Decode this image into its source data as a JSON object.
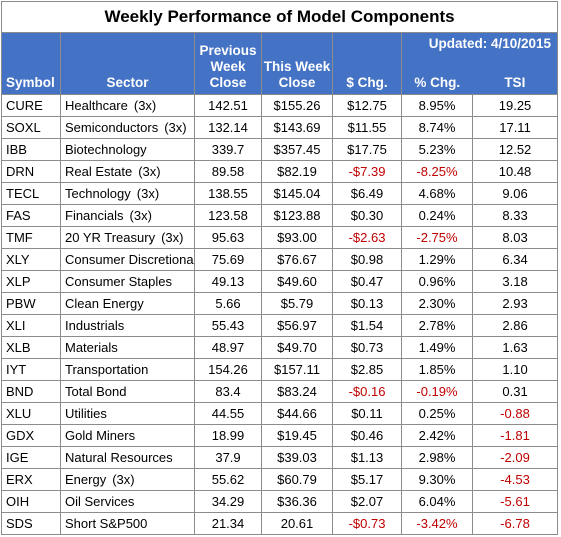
{
  "title": "Weekly Performance of Model Components",
  "updated": "Updated:  4/10/2015",
  "headers": {
    "symbol": "Symbol",
    "sector": "Sector",
    "prev_close": "Previous Week Close",
    "this_close": "This Week Close",
    "dollar_chg": "$ Chg.",
    "pct_chg": "% Chg.",
    "tsi": "TSI"
  },
  "rows": [
    {
      "symbol": "CURE",
      "sector": "Healthcare",
      "tag": "(3x)",
      "prev": "142.51",
      "cur": "$155.26",
      "dchg": "$12.75",
      "pchg": "8.95%",
      "tsi": "19.25"
    },
    {
      "symbol": "SOXL",
      "sector": "Semiconductors",
      "tag": "(3x)",
      "prev": "132.14",
      "cur": "$143.69",
      "dchg": "$11.55",
      "pchg": "8.74%",
      "tsi": "17.11"
    },
    {
      "symbol": "IBB",
      "sector": "Biotechnology",
      "tag": "",
      "prev": "339.7",
      "cur": "$357.45",
      "dchg": "$17.75",
      "pchg": "5.23%",
      "tsi": "12.52"
    },
    {
      "symbol": "DRN",
      "sector": "Real Estate",
      "tag": "(3x)",
      "prev": "89.58",
      "cur": "$82.19",
      "dchg": "-$7.39",
      "pchg": "-8.25%",
      "tsi": "10.48"
    },
    {
      "symbol": "TECL",
      "sector": "Technology",
      "tag": "(3x)",
      "prev": "138.55",
      "cur": "$145.04",
      "dchg": "$6.49",
      "pchg": "4.68%",
      "tsi": "9.06"
    },
    {
      "symbol": "FAS",
      "sector": "Financials",
      "tag": "(3x)",
      "prev": "123.58",
      "cur": "$123.88",
      "dchg": "$0.30",
      "pchg": "0.24%",
      "tsi": "8.33"
    },
    {
      "symbol": "TMF",
      "sector": "20 YR Treasury",
      "tag": "(3x)",
      "prev": "95.63",
      "cur": "$93.00",
      "dchg": "-$2.63",
      "pchg": "-2.75%",
      "tsi": "8.03"
    },
    {
      "symbol": "XLY",
      "sector": "Consumer Discretiona",
      "tag": "",
      "prev": "75.69",
      "cur": "$76.67",
      "dchg": "$0.98",
      "pchg": "1.29%",
      "tsi": "6.34"
    },
    {
      "symbol": "XLP",
      "sector": "Consumer Staples",
      "tag": "",
      "prev": "49.13",
      "cur": "$49.60",
      "dchg": "$0.47",
      "pchg": "0.96%",
      "tsi": "3.18"
    },
    {
      "symbol": "PBW",
      "sector": "Clean Energy",
      "tag": "",
      "prev": "5.66",
      "cur": "$5.79",
      "dchg": "$0.13",
      "pchg": "2.30%",
      "tsi": "2.93"
    },
    {
      "symbol": "XLI",
      "sector": "Industrials",
      "tag": "",
      "prev": "55.43",
      "cur": "$56.97",
      "dchg": "$1.54",
      "pchg": "2.78%",
      "tsi": "2.86"
    },
    {
      "symbol": "XLB",
      "sector": "Materials",
      "tag": "",
      "prev": "48.97",
      "cur": "$49.70",
      "dchg": "$0.73",
      "pchg": "1.49%",
      "tsi": "1.63"
    },
    {
      "symbol": "IYT",
      "sector": "Transportation",
      "tag": "",
      "prev": "154.26",
      "cur": "$157.11",
      "dchg": "$2.85",
      "pchg": "1.85%",
      "tsi": "1.10"
    },
    {
      "symbol": "BND",
      "sector": "Total Bond",
      "tag": "",
      "prev": "83.4",
      "cur": "$83.24",
      "dchg": "-$0.16",
      "pchg": "-0.19%",
      "tsi": "0.31"
    },
    {
      "symbol": "XLU",
      "sector": "Utilities",
      "tag": "",
      "prev": "44.55",
      "cur": "$44.66",
      "dchg": "$0.11",
      "pchg": "0.25%",
      "tsi": "-0.88"
    },
    {
      "symbol": "GDX",
      "sector": "Gold Miners",
      "tag": "",
      "prev": "18.99",
      "cur": "$19.45",
      "dchg": "$0.46",
      "pchg": "2.42%",
      "tsi": "-1.81"
    },
    {
      "symbol": "IGE",
      "sector": "Natural Resources",
      "tag": "",
      "prev": "37.9",
      "cur": "$39.03",
      "dchg": "$1.13",
      "pchg": "2.98%",
      "tsi": "-2.09"
    },
    {
      "symbol": "ERX",
      "sector": "Energy",
      "tag": "(3x)",
      "prev": "55.62",
      "cur": "$60.79",
      "dchg": "$5.17",
      "pchg": "9.30%",
      "tsi": "-4.53"
    },
    {
      "symbol": "OIH",
      "sector": "Oil Services",
      "tag": "",
      "prev": "34.29",
      "cur": "$36.36",
      "dchg": "$2.07",
      "pchg": "6.04%",
      "tsi": "-5.61"
    },
    {
      "symbol": "SDS",
      "sector": "Short S&P500",
      "tag": "",
      "prev": "21.34",
      "cur": "20.61",
      "dchg": "-$0.73",
      "pchg": "-3.42%",
      "tsi": "-6.78"
    }
  ],
  "colors": {
    "header_bg": "#4472c4",
    "header_text": "#ffffff",
    "negative": "#c00000",
    "border": "#8c8c8c"
  }
}
